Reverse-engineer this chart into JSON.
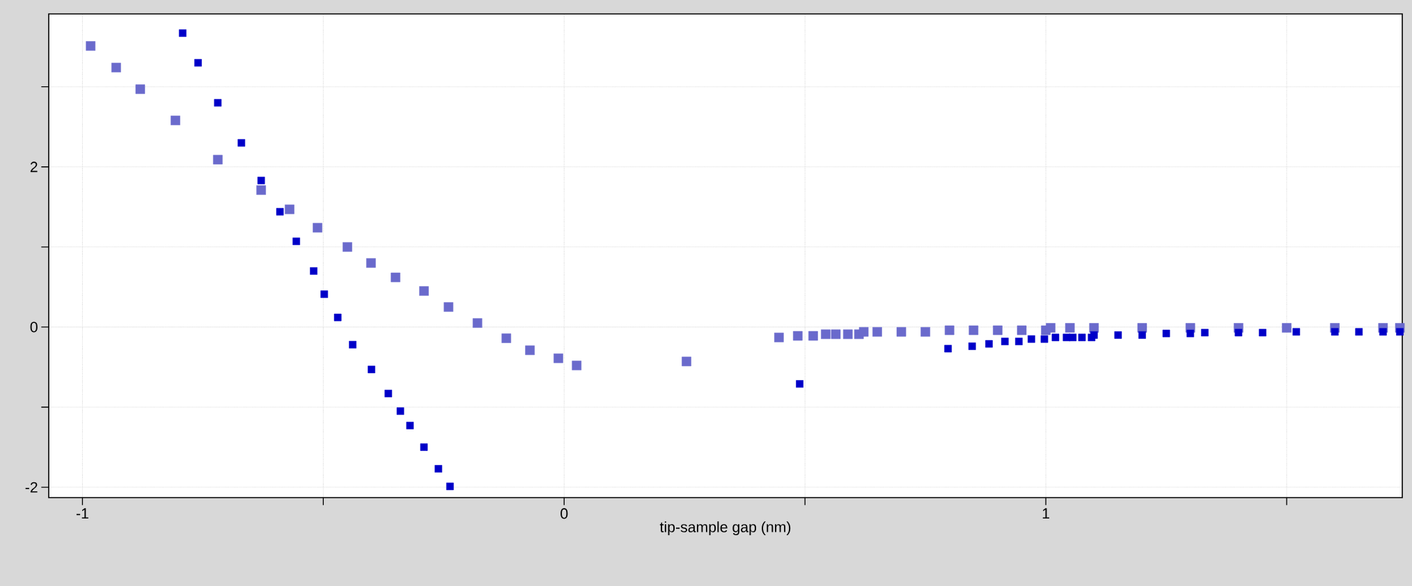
{
  "chart_data": {
    "type": "scatter",
    "xlabel": "tip-sample gap (nm)",
    "xlim": [
      -1.07,
      1.74
    ],
    "ylim": [
      -2.13,
      3.91
    ],
    "xticks": [
      -1,
      {
        "value": -0.5,
        "label": null
      },
      0,
      {
        "value": 0.5,
        "label": null
      },
      1,
      {
        "value": 1.5,
        "label": null
      }
    ],
    "yticks": [
      -2,
      {
        "value": -1,
        "label": null
      },
      0,
      {
        "value": 1,
        "label": null
      },
      2,
      {
        "value": 3,
        "label": null
      }
    ],
    "grid": true,
    "marker": "square",
    "series": [
      {
        "color": "#6a6acc",
        "x": [
          -0.983,
          -0.93,
          -0.88,
          -0.807,
          -0.719,
          -0.629,
          -0.57,
          -0.512,
          -0.45,
          -0.401,
          -0.35,
          -0.291,
          -0.24,
          -0.18,
          -0.12,
          -0.071,
          -0.012,
          0.026,
          0.254,
          0.446,
          0.485,
          0.517,
          0.543,
          0.564,
          0.589,
          0.612,
          0.622,
          0.65,
          0.7,
          0.75,
          0.8,
          0.85,
          0.9,
          0.95,
          1.0,
          1.01,
          1.05,
          1.1,
          1.2,
          1.3,
          1.4,
          1.5,
          1.6,
          1.7,
          1.735
        ],
        "values": [
          3.51,
          3.24,
          2.97,
          2.58,
          2.09,
          1.71,
          1.47,
          1.24,
          1.0,
          0.8,
          0.62,
          0.45,
          0.25,
          0.05,
          -0.14,
          -0.29,
          -0.39,
          -0.48,
          -0.43,
          -0.13,
          -0.11,
          -0.11,
          -0.09,
          -0.09,
          -0.09,
          -0.09,
          -0.06,
          -0.06,
          -0.06,
          -0.06,
          -0.04,
          -0.04,
          -0.04,
          -0.04,
          -0.04,
          -0.01,
          -0.01,
          -0.01,
          -0.01,
          -0.01,
          -0.01,
          -0.01,
          -0.01,
          -0.01,
          -0.01
        ]
      },
      {
        "color": "#0000c8",
        "x": [
          -0.792,
          -0.76,
          -0.719,
          -0.67,
          -0.629,
          -0.59,
          -0.556,
          -0.52,
          -0.498,
          -0.47,
          -0.439,
          -0.4,
          -0.365,
          -0.34,
          -0.32,
          -0.291,
          -0.261,
          -0.237,
          0.489,
          0.797,
          0.847,
          0.882,
          0.915,
          0.944,
          0.97,
          0.997,
          1.02,
          1.043,
          1.056,
          1.075,
          1.095,
          1.1,
          1.15,
          1.2,
          1.25,
          1.3,
          1.33,
          1.4,
          1.45,
          1.52,
          1.6,
          1.65,
          1.7,
          1.735
        ],
        "values": [
          3.67,
          3.3,
          2.8,
          2.3,
          1.83,
          1.44,
          1.07,
          0.7,
          0.41,
          0.12,
          -0.22,
          -0.53,
          -0.83,
          -1.05,
          -1.23,
          -1.5,
          -1.77,
          -1.99,
          -0.71,
          -0.27,
          -0.24,
          -0.21,
          -0.18,
          -0.18,
          -0.15,
          -0.15,
          -0.13,
          -0.13,
          -0.13,
          -0.13,
          -0.13,
          -0.1,
          -0.1,
          -0.1,
          -0.08,
          -0.08,
          -0.07,
          -0.07,
          -0.07,
          -0.06,
          -0.06,
          -0.06,
          -0.06,
          -0.06
        ]
      }
    ]
  }
}
